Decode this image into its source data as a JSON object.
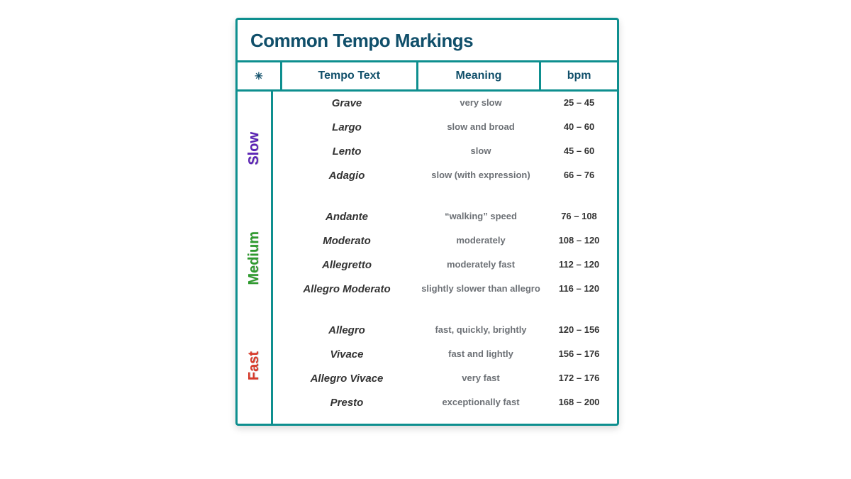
{
  "title": "Common Tempo Markings",
  "columns": {
    "tempo": "Tempo Text",
    "meaning": "Meaning",
    "bpm": "bpm"
  },
  "border_color": "#0e8f8f",
  "title_color": "#104f6a",
  "header_text_color": "#104f6a",
  "tempo_text_color": "#333333",
  "meaning_text_color": "#6d7176",
  "bpm_text_color": "#333333",
  "background_color": "#ffffff",
  "title_fontsize": 26,
  "header_fontsize": 16,
  "tempo_fontsize": 15,
  "meaning_fontsize": 13,
  "bpm_fontsize": 13,
  "category_fontsize": 20,
  "col_widths": {
    "category": 56,
    "tempo": 196,
    "meaning": 176,
    "bpm": 107
  },
  "logo_icon": "✳",
  "categories": [
    {
      "label": "Slow",
      "color": "#5a22b5",
      "rows": [
        {
          "tempo": "Grave",
          "meaning": "very slow",
          "bpm": "25 – 45"
        },
        {
          "tempo": "Largo",
          "meaning": "slow and broad",
          "bpm": "40 – 60"
        },
        {
          "tempo": "Lento",
          "meaning": "slow",
          "bpm": "45 – 60"
        },
        {
          "tempo": "Adagio",
          "meaning": "slow (with expression)",
          "bpm": "66 – 76"
        }
      ]
    },
    {
      "label": "Medium",
      "color": "#2e9a2e",
      "rows": [
        {
          "tempo": "Andante",
          "meaning": "“walking” speed",
          "bpm": "76 – 108"
        },
        {
          "tempo": "Moderato",
          "meaning": "moderately",
          "bpm": "108 – 120"
        },
        {
          "tempo": "Allegretto",
          "meaning": "moderately fast",
          "bpm": "112 – 120"
        },
        {
          "tempo": "Allegro Moderato",
          "meaning": "slightly slower than allegro",
          "bpm": "116 – 120"
        }
      ]
    },
    {
      "label": "Fast",
      "color": "#d83a2a",
      "rows": [
        {
          "tempo": "Allegro",
          "meaning": "fast, quickly, brightly",
          "bpm": "120 – 156"
        },
        {
          "tempo": "Vivace",
          "meaning": "fast and lightly",
          "bpm": "156 – 176"
        },
        {
          "tempo": "Allegro Vivace",
          "meaning": "very fast",
          "bpm": "172 – 176"
        },
        {
          "tempo": "Presto",
          "meaning": "exceptionally fast",
          "bpm": "168 – 200"
        }
      ]
    }
  ]
}
